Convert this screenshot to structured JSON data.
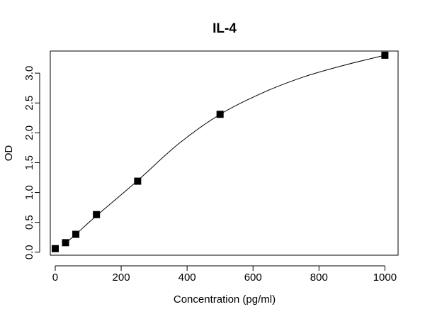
{
  "chart_data": {
    "type": "scatter",
    "title": "IL-4",
    "xlabel": "Concentration (pg/ml)",
    "ylabel": "OD",
    "xlim": [
      -15,
      1040
    ],
    "ylim": [
      -0.05,
      3.37
    ],
    "xticks": [
      0,
      200,
      400,
      600,
      800,
      1000
    ],
    "xtick_labels": [
      "0",
      "200",
      "400",
      "600",
      "800",
      "1000"
    ],
    "yticks": [
      0.0,
      0.5,
      1.0,
      1.5,
      2.0,
      2.5,
      3.0
    ],
    "ytick_labels": [
      "0.0",
      "0.5",
      "1.0",
      "1.5",
      "2.0",
      "2.5",
      "3.0"
    ],
    "grid": false,
    "legend": "none",
    "series": [
      {
        "marker": "square",
        "color": "#000000",
        "x": [
          0,
          31.25,
          62.5,
          125,
          250,
          500,
          1000
        ],
        "y": [
          0.06,
          0.16,
          0.3,
          0.63,
          1.19,
          2.31,
          3.3
        ]
      }
    ],
    "fit_curve": {
      "color": "#000000",
      "x": [
        31.25,
        62.5,
        125,
        250,
        375,
        500,
        625,
        750,
        875,
        1000
      ],
      "y": [
        0.15,
        0.3,
        0.61,
        1.2,
        1.82,
        2.31,
        2.66,
        2.93,
        3.13,
        3.3
      ]
    }
  }
}
